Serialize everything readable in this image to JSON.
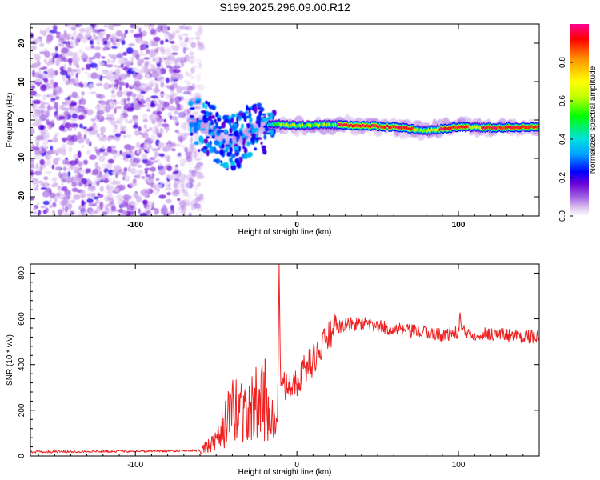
{
  "title": "S199.2025.296.09.00.R12",
  "chart_data": [
    {
      "type": "heatmap",
      "name": "spectrogram",
      "xlabel": "Height of straight line (km)",
      "ylabel": "Frequency (Hz)",
      "xlim": [
        -165,
        150
      ],
      "ylim": [
        -25,
        25
      ],
      "x_ticks": [
        -100,
        0,
        100
      ],
      "y_ticks": [
        -20,
        -10,
        0,
        10,
        20
      ],
      "colorbar": {
        "label": "Normalized spectral amplitude",
        "range": [
          0,
          1
        ],
        "ticks": [
          0.0,
          0.2,
          0.4,
          0.6,
          0.8
        ],
        "colors": [
          "#ffffff",
          "#e0c8f0",
          "#a060e0",
          "#6a00d8",
          "#0000ff",
          "#00a0ff",
          "#00e0e0",
          "#00ff00",
          "#c0ff00",
          "#ffff00",
          "#ff9000",
          "#ff0000",
          "#ff0090"
        ]
      },
      "ridge": {
        "description": "dominant frequency track",
        "x": [
          -65,
          -55,
          -45,
          -35,
          -25,
          -15,
          0,
          20,
          40,
          60,
          80,
          100,
          120,
          150
        ],
        "y": [
          -1,
          -2,
          -6,
          -5,
          -2,
          -1,
          -1.5,
          -1.2,
          -1.5,
          -1.8,
          -2.8,
          -1.8,
          -2,
          -1.8
        ],
        "peak_amplitude_x_range": [
          25,
          140
        ]
      },
      "noise_region_x": [
        -165,
        -65
      ]
    },
    {
      "type": "line",
      "name": "snr",
      "xlabel": "Height of straight line (km)",
      "ylabel": "SNR (10 * v/v)",
      "xlim": [
        -165,
        150
      ],
      "ylim": [
        0,
        840
      ],
      "x_ticks": [
        -100,
        0,
        100
      ],
      "y_ticks": [
        0,
        200,
        400,
        600,
        800
      ],
      "color": "#ee2020",
      "series": [
        {
          "name": "SNR",
          "x": [
            -165,
            -120,
            -80,
            -60,
            -50,
            -45,
            -40,
            -35,
            -30,
            -25,
            -20,
            -15,
            -12,
            -11,
            -10,
            -8,
            -5,
            0,
            5,
            10,
            15,
            20,
            25,
            30,
            40,
            50,
            60,
            70,
            80,
            90,
            100,
            101,
            102,
            110,
            120,
            130,
            140,
            150
          ],
          "y": [
            18,
            20,
            22,
            25,
            60,
            140,
            190,
            220,
            180,
            230,
            260,
            150,
            120,
            840,
            260,
            300,
            330,
            330,
            380,
            420,
            470,
            530,
            560,
            575,
            580,
            565,
            555,
            545,
            540,
            530,
            540,
            630,
            545,
            535,
            535,
            530,
            525,
            520
          ]
        }
      ]
    }
  ]
}
